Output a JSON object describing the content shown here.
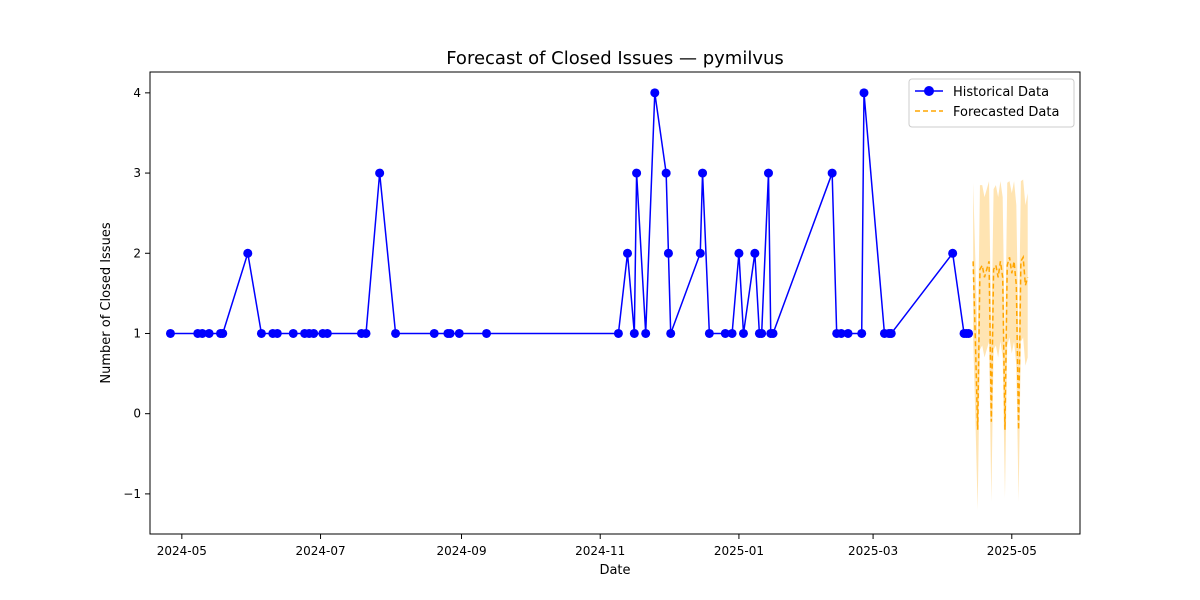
{
  "chart_data": {
    "type": "line",
    "title": "Forecast of Closed Issues — pymilvus",
    "xlabel": "Date",
    "ylabel": "Number of Closed Issues",
    "x_axis": {
      "type": "date",
      "range": [
        "2024-04-17",
        "2025-05-31"
      ],
      "ticks": [
        "2024-05-01",
        "2024-07-01",
        "2024-09-01",
        "2024-11-01",
        "2025-01-01",
        "2025-03-01",
        "2025-05-01"
      ],
      "tick_labels": [
        "2024-05",
        "2024-07",
        "2024-09",
        "2024-11",
        "2025-01",
        "2025-03",
        "2025-05"
      ]
    },
    "y_axis": {
      "range": [
        -1.5,
        4.26
      ],
      "ticks": [
        -1,
        0,
        1,
        2,
        3,
        4
      ],
      "tick_labels": [
        "−1",
        "0",
        "1",
        "2",
        "3",
        "4"
      ]
    },
    "grid": false,
    "legend": {
      "position": "top-right",
      "entries": [
        "Historical Data",
        "Forecasted Data"
      ]
    },
    "series": [
      {
        "name": "Historical Data",
        "style": "solid-line-circle-markers",
        "color": "#0000ff",
        "points": [
          [
            "2024-04-26",
            1
          ],
          [
            "2024-05-08",
            1
          ],
          [
            "2024-05-10",
            1
          ],
          [
            "2024-05-13",
            1
          ],
          [
            "2024-05-18",
            1
          ],
          [
            "2024-05-19",
            1
          ],
          [
            "2024-05-30",
            2
          ],
          [
            "2024-06-05",
            1
          ],
          [
            "2024-06-10",
            1
          ],
          [
            "2024-06-12",
            1
          ],
          [
            "2024-06-19",
            1
          ],
          [
            "2024-06-24",
            1
          ],
          [
            "2024-06-26",
            1
          ],
          [
            "2024-06-28",
            1
          ],
          [
            "2024-07-02",
            1
          ],
          [
            "2024-07-04",
            1
          ],
          [
            "2024-07-19",
            1
          ],
          [
            "2024-07-21",
            1
          ],
          [
            "2024-07-27",
            3
          ],
          [
            "2024-08-03",
            1
          ],
          [
            "2024-08-20",
            1
          ],
          [
            "2024-08-26",
            1
          ],
          [
            "2024-08-27",
            1
          ],
          [
            "2024-08-31",
            1
          ],
          [
            "2024-09-12",
            1
          ],
          [
            "2024-11-09",
            1
          ],
          [
            "2024-11-13",
            2
          ],
          [
            "2024-11-16",
            1
          ],
          [
            "2024-11-17",
            3
          ],
          [
            "2024-11-21",
            1
          ],
          [
            "2024-11-25",
            4
          ],
          [
            "2024-11-30",
            3
          ],
          [
            "2024-12-01",
            2
          ],
          [
            "2024-12-02",
            1
          ],
          [
            "2024-12-15",
            2
          ],
          [
            "2024-12-16",
            3
          ],
          [
            "2024-12-19",
            1
          ],
          [
            "2024-12-26",
            1
          ],
          [
            "2024-12-29",
            1
          ],
          [
            "2025-01-01",
            2
          ],
          [
            "2025-01-03",
            1
          ],
          [
            "2025-01-08",
            2
          ],
          [
            "2025-01-10",
            1
          ],
          [
            "2025-01-11",
            1
          ],
          [
            "2025-01-14",
            3
          ],
          [
            "2025-01-15",
            1
          ],
          [
            "2025-01-16",
            1
          ],
          [
            "2025-02-11",
            3
          ],
          [
            "2025-02-13",
            1
          ],
          [
            "2025-02-15",
            1
          ],
          [
            "2025-02-18",
            1
          ],
          [
            "2025-02-24",
            1
          ],
          [
            "2025-02-25",
            4
          ],
          [
            "2025-03-06",
            1
          ],
          [
            "2025-03-08",
            1
          ],
          [
            "2025-03-09",
            1
          ],
          [
            "2025-04-05",
            2
          ],
          [
            "2025-04-10",
            1
          ],
          [
            "2025-04-11",
            1
          ],
          [
            "2025-04-12",
            1
          ]
        ]
      },
      {
        "name": "Forecasted Data",
        "style": "dashed-line-with-confidence-band",
        "color": "#ffa500",
        "band_color": "#ffa500",
        "points": [
          [
            "2025-04-14",
            1.9,
            0.95,
            2.88
          ],
          [
            "2025-04-15",
            0.9,
            -0.08,
            1.9
          ],
          [
            "2025-04-16",
            -0.2,
            -1.2,
            0.8
          ],
          [
            "2025-04-17",
            1.8,
            0.8,
            2.85
          ],
          [
            "2025-04-18",
            1.85,
            0.85,
            2.85
          ],
          [
            "2025-04-19",
            1.7,
            0.7,
            2.7
          ],
          [
            "2025-04-20",
            1.8,
            0.8,
            2.8
          ],
          [
            "2025-04-21",
            1.9,
            0.9,
            2.9
          ],
          [
            "2025-04-22",
            -0.1,
            -1.1,
            0.9
          ],
          [
            "2025-04-23",
            1.8,
            0.8,
            2.8
          ],
          [
            "2025-04-24",
            1.85,
            0.85,
            2.85
          ],
          [
            "2025-04-25",
            1.7,
            0.7,
            2.7
          ],
          [
            "2025-04-26",
            1.9,
            0.9,
            2.9
          ],
          [
            "2025-04-27",
            1.7,
            0.7,
            2.7
          ],
          [
            "2025-04-28",
            -0.2,
            -1.05,
            0.75
          ],
          [
            "2025-04-29",
            1.85,
            0.85,
            2.88
          ],
          [
            "2025-04-30",
            1.95,
            0.95,
            2.9
          ],
          [
            "2025-05-01",
            1.75,
            0.75,
            2.75
          ],
          [
            "2025-05-02",
            1.9,
            0.9,
            2.9
          ],
          [
            "2025-05-03",
            1.6,
            0.6,
            2.6
          ],
          [
            "2025-05-04",
            -0.2,
            -1.1,
            0.8
          ],
          [
            "2025-05-05",
            1.9,
            0.9,
            2.9
          ],
          [
            "2025-05-06",
            1.95,
            0.95,
            2.92
          ],
          [
            "2025-05-07",
            1.6,
            0.6,
            2.6
          ],
          [
            "2025-05-08",
            1.7,
            0.7,
            2.75
          ]
        ]
      }
    ]
  }
}
